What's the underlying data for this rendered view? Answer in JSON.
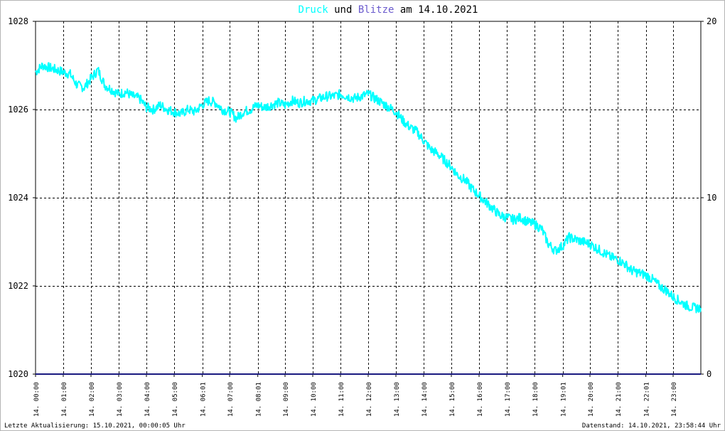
{
  "title": {
    "series1": "Druck",
    "conj": "und",
    "series2": "Blitze",
    "rest": "am 14.10.2021",
    "color_series1": "#00ffff",
    "color_series2": "#6a5acd",
    "color_rest": "#000000"
  },
  "footer": {
    "left": "Letzte Aktualisierung: 15.10.2021, 00:00:05 Uhr",
    "right": "Datenstand: 14.10.2021, 23:58:44 Uhr"
  },
  "chart_data": {
    "type": "line",
    "x_tick_labels": [
      "14. 00:00",
      "14. 01:00",
      "14. 02:00",
      "14. 03:00",
      "14. 04:00",
      "14. 05:00",
      "14. 06:01",
      "14. 07:00",
      "14. 08:01",
      "14. 09:00",
      "14. 10:00",
      "14. 11:00",
      "14. 12:00",
      "14. 13:00",
      "14. 14:00",
      "14. 15:00",
      "14. 16:00",
      "14. 17:00",
      "14. 18:00",
      "14. 19:01",
      "14. 20:00",
      "14. 21:00",
      "14. 22:01",
      "14. 23:00"
    ],
    "x_tick_hours": [
      0,
      1,
      2,
      3,
      4,
      5,
      6.017,
      7,
      8.017,
      9,
      10,
      11,
      12,
      13,
      14,
      15,
      16,
      17,
      18,
      19.017,
      20,
      21,
      22.017,
      23
    ],
    "xlim_hours": [
      0,
      24
    ],
    "y_left": {
      "range": [
        1020,
        1028
      ],
      "ticks": [
        1020,
        1022,
        1024,
        1026,
        1028
      ]
    },
    "y_right": {
      "range": [
        0,
        20
      ],
      "ticks": [
        0,
        10,
        20
      ]
    },
    "grid": true,
    "series": [
      {
        "name": "Druck",
        "axis": "left",
        "color": "#00ffff",
        "x_hours": [
          0,
          0.25,
          0.5,
          0.75,
          1,
          1.25,
          1.5,
          1.75,
          2,
          2.25,
          2.5,
          2.75,
          3,
          3.25,
          3.5,
          3.75,
          4,
          4.25,
          4.5,
          4.75,
          5,
          5.25,
          5.5,
          5.75,
          6,
          6.25,
          6.5,
          6.75,
          7,
          7.25,
          7.5,
          7.75,
          8,
          8.25,
          8.5,
          8.75,
          9,
          9.25,
          9.5,
          9.75,
          10,
          10.25,
          10.5,
          10.75,
          11,
          11.25,
          11.5,
          11.75,
          12,
          12.25,
          12.5,
          12.75,
          13,
          13.25,
          13.5,
          13.75,
          14,
          14.25,
          14.5,
          14.75,
          15,
          15.25,
          15.5,
          15.75,
          16,
          16.25,
          16.5,
          16.75,
          17,
          17.25,
          17.5,
          17.75,
          18,
          18.25,
          18.5,
          18.75,
          19,
          19.25,
          19.5,
          19.75,
          20,
          20.25,
          20.5,
          20.75,
          21,
          21.25,
          21.5,
          21.75,
          22,
          22.25,
          22.5,
          22.75,
          23,
          23.25,
          23.5,
          23.75,
          24
        ],
        "values": [
          1026.85,
          1027.0,
          1026.95,
          1026.9,
          1026.85,
          1026.8,
          1026.55,
          1026.5,
          1026.7,
          1026.9,
          1026.55,
          1026.45,
          1026.35,
          1026.4,
          1026.3,
          1026.25,
          1026.05,
          1026.0,
          1026.1,
          1026.0,
          1025.95,
          1025.9,
          1026.0,
          1025.95,
          1026.1,
          1026.2,
          1026.15,
          1026.0,
          1025.95,
          1025.8,
          1025.95,
          1026.0,
          1026.1,
          1026.05,
          1026.1,
          1026.15,
          1026.1,
          1026.2,
          1026.15,
          1026.2,
          1026.2,
          1026.25,
          1026.3,
          1026.3,
          1026.35,
          1026.3,
          1026.25,
          1026.3,
          1026.35,
          1026.25,
          1026.15,
          1026.05,
          1025.95,
          1025.75,
          1025.6,
          1025.5,
          1025.3,
          1025.1,
          1025.0,
          1024.85,
          1024.7,
          1024.5,
          1024.4,
          1024.2,
          1024.05,
          1023.9,
          1023.75,
          1023.6,
          1023.55,
          1023.5,
          1023.55,
          1023.45,
          1023.4,
          1023.3,
          1022.95,
          1022.8,
          1022.9,
          1023.1,
          1023.05,
          1023.0,
          1022.95,
          1022.85,
          1022.75,
          1022.65,
          1022.6,
          1022.5,
          1022.35,
          1022.3,
          1022.25,
          1022.15,
          1022.0,
          1021.9,
          1021.75,
          1021.65,
          1021.55,
          1021.5,
          1021.5
        ]
      },
      {
        "name": "Blitze",
        "axis": "right",
        "color": "#1a1a80",
        "x_hours": [
          0,
          24
        ],
        "values": [
          0,
          0
        ]
      }
    ]
  }
}
